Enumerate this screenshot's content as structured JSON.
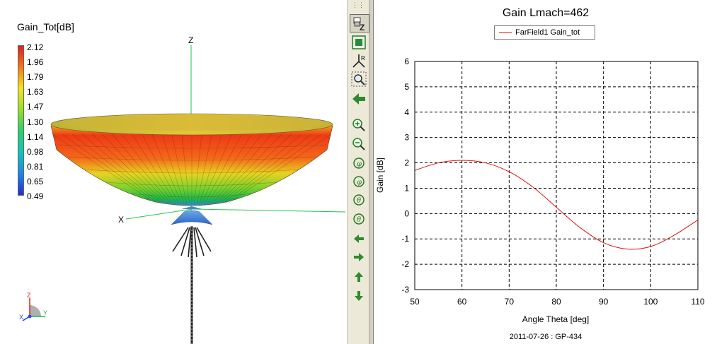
{
  "viewer3d": {
    "colorbar": {
      "title": "Gain_Tot[dB]",
      "labels": [
        "2.12",
        "1.96",
        "1.79",
        "1.63",
        "1.47",
        "1.30",
        "1.14",
        "0.98",
        "0.81",
        "0.65",
        "0.49"
      ],
      "colors": [
        "#e0201c",
        "#f27a16",
        "#f6e51c",
        "#96e02c",
        "#2ad06a",
        "#10c5bb",
        "#1e86e4",
        "#1f2fd2"
      ]
    },
    "axes": {
      "z": "Z",
      "x": "X",
      "y": "Y"
    },
    "triad": {
      "z": "Z",
      "x": "X",
      "y": "Y"
    }
  },
  "toolbar": {
    "buttons": [
      {
        "name": "lock-z-view",
        "icon": "lock-z-icon"
      },
      {
        "name": "fit-view",
        "icon": "fit-view-icon"
      },
      {
        "name": "axis-triad",
        "icon": "triad-icon"
      },
      {
        "name": "zoom-window",
        "icon": "zoom-window-icon"
      },
      {
        "name": "back",
        "icon": "arrow-back-icon"
      },
      {
        "name": "zoom-in",
        "icon": "zoom-in-icon"
      },
      {
        "name": "zoom-out",
        "icon": "zoom-out-icon"
      },
      {
        "name": "rotate-phi-left",
        "icon": "rotate-phi-left-icon"
      },
      {
        "name": "rotate-phi-right",
        "icon": "rotate-phi-right-icon"
      },
      {
        "name": "rotate-theta-down",
        "icon": "rotate-theta-down-icon"
      },
      {
        "name": "rotate-theta-up",
        "icon": "rotate-theta-up-icon"
      },
      {
        "name": "pan-left",
        "icon": "pan-left-icon"
      },
      {
        "name": "pan-right",
        "icon": "pan-right-icon"
      },
      {
        "name": "pan-up",
        "icon": "pan-up-icon"
      },
      {
        "name": "pan-down",
        "icon": "pan-down-icon"
      }
    ]
  },
  "chart_data": {
    "type": "line",
    "title": "Gain Lmach=462",
    "xlabel": "Angle Theta [deg]",
    "ylabel": "Gain [dB]",
    "xlim": [
      50,
      110
    ],
    "ylim": [
      -3,
      6
    ],
    "xticks": [
      50,
      60,
      70,
      80,
      90,
      100,
      110
    ],
    "yticks": [
      -3,
      -2,
      -1,
      0,
      1,
      2,
      3,
      4,
      5,
      6
    ],
    "grid": true,
    "legend": "top-center",
    "series": [
      {
        "name": "FarField1 Gain_tot",
        "color": "#dd1111",
        "x": [
          50,
          55,
          60,
          65,
          70,
          75,
          80,
          85,
          90,
          95,
          100,
          105,
          110
        ],
        "y": [
          1.7,
          2.0,
          2.1,
          2.0,
          1.65,
          1.05,
          0.25,
          -0.55,
          -1.15,
          -1.4,
          -1.3,
          -0.85,
          -0.25
        ]
      }
    ],
    "footer": "2011-07-26 : GP-434"
  }
}
